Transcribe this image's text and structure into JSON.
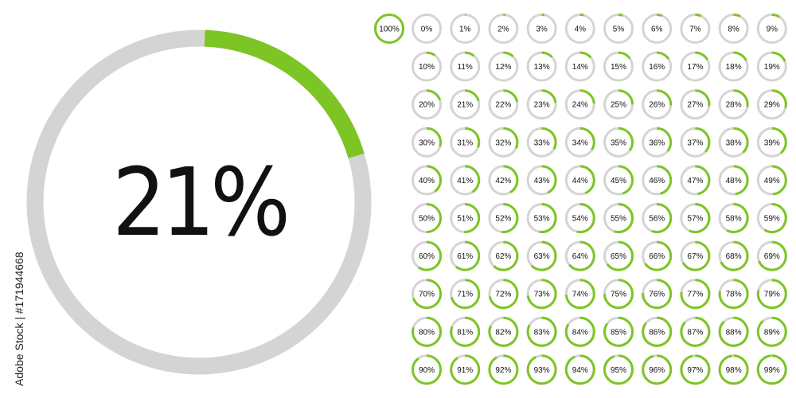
{
  "watermark": {
    "side_text": "Adobe Stock | #171944668"
  },
  "colors": {
    "accent": "#7dc524",
    "track": "#d4d4d4",
    "text": "#111111",
    "background": "#ffffff"
  },
  "big_chart": {
    "label": "21%",
    "value": 21
  },
  "small_charts": {
    "values": [
      100,
      0,
      1,
      2,
      3,
      4,
      5,
      6,
      7,
      8,
      9,
      10,
      11,
      12,
      13,
      14,
      15,
      16,
      17,
      18,
      19,
      20,
      21,
      22,
      23,
      24,
      25,
      26,
      27,
      28,
      29,
      30,
      31,
      32,
      33,
      34,
      35,
      36,
      37,
      38,
      39,
      40,
      41,
      42,
      43,
      44,
      45,
      46,
      47,
      48,
      49,
      50,
      51,
      52,
      53,
      54,
      55,
      56,
      57,
      58,
      59,
      60,
      61,
      62,
      63,
      64,
      65,
      66,
      67,
      68,
      69,
      70,
      71,
      72,
      73,
      74,
      75,
      76,
      77,
      78,
      79,
      80,
      81,
      82,
      83,
      84,
      85,
      86,
      87,
      88,
      89,
      90,
      91,
      92,
      93,
      94,
      95,
      96,
      97,
      98,
      99
    ],
    "labels": [
      "100%",
      "0%",
      "1%",
      "2%",
      "3%",
      "4%",
      "5%",
      "6%",
      "7%",
      "8%",
      "9%",
      "10%",
      "11%",
      "12%",
      "13%",
      "14%",
      "15%",
      "16%",
      "17%",
      "18%",
      "19%",
      "20%",
      "21%",
      "22%",
      "23%",
      "24%",
      "25%",
      "26%",
      "27%",
      "28%",
      "29%",
      "30%",
      "31%",
      "32%",
      "33%",
      "34%",
      "35%",
      "36%",
      "37%",
      "38%",
      "39%",
      "40%",
      "41%",
      "42%",
      "43%",
      "44%",
      "45%",
      "46%",
      "47%",
      "48%",
      "49%",
      "50%",
      "51%",
      "52%",
      "53%",
      "54%",
      "55%",
      "56%",
      "57%",
      "58%",
      "59%",
      "60%",
      "61%",
      "62%",
      "63%",
      "64%",
      "65%",
      "66%",
      "67%",
      "68%",
      "69%",
      "70%",
      "71%",
      "72%",
      "73%",
      "74%",
      "75%",
      "76%",
      "77%",
      "78%",
      "79%",
      "80%",
      "81%",
      "82%",
      "83%",
      "84%",
      "85%",
      "86%",
      "87%",
      "88%",
      "89%",
      "90%",
      "91%",
      "92%",
      "93%",
      "94%",
      "95%",
      "96%",
      "97%",
      "98%",
      "99%"
    ]
  }
}
